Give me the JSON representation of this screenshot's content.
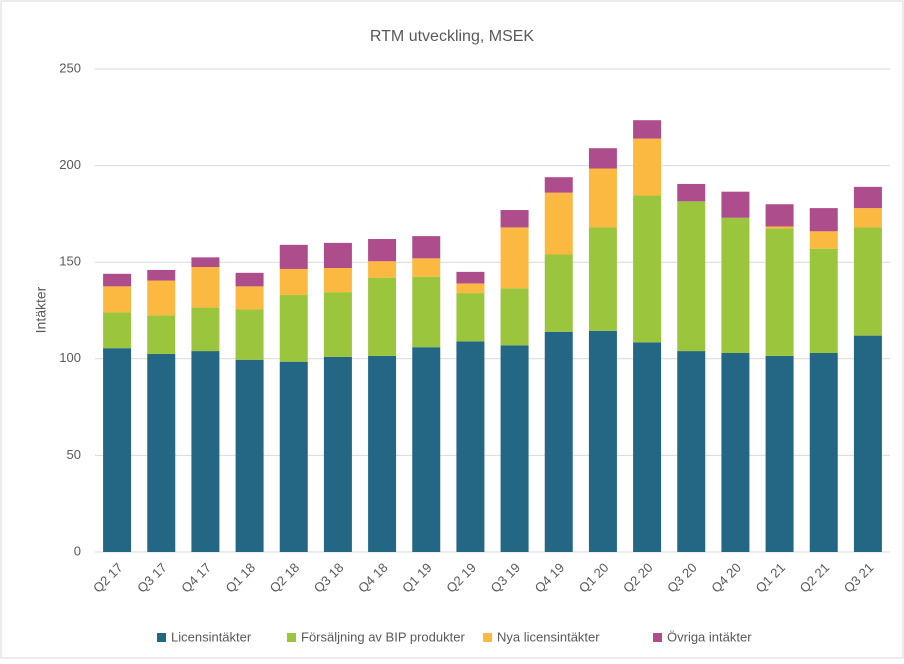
{
  "chart_data": {
    "type": "stacked_bar",
    "title": "RTM utveckling, MSEK",
    "y_label": "Intäkter",
    "categories": [
      "Q2 17",
      "Q3 17",
      "Q4 17",
      "Q1 18",
      "Q2 18",
      "Q3 18",
      "Q4 18",
      "Q1 19",
      "Q2 19",
      "Q3 19",
      "Q4 19",
      "Q1 20",
      "Q2 20",
      "Q3 20",
      "Q4 20",
      "Q1 21",
      "Q2 21",
      "Q3 21"
    ],
    "series": [
      {
        "name": "Licensintäkter",
        "color": "#236785",
        "values": [
          105.5,
          102.5,
          104,
          99.5,
          98.5,
          101,
          101.5,
          106,
          109,
          107,
          114,
          114.5,
          108.5,
          104,
          103,
          101.5,
          103,
          112
        ]
      },
      {
        "name": "Försäljning av BIP produkter",
        "color": "#9bc53d",
        "values": [
          18.5,
          20,
          22.5,
          26,
          34.5,
          33.5,
          40.5,
          36.5,
          25,
          29.5,
          40,
          53.5,
          76,
          77.5,
          70,
          66,
          54,
          56
        ]
      },
      {
        "name": "Nya licensintäkter",
        "color": "#fbb941",
        "values": [
          13.5,
          18,
          21,
          12,
          13.5,
          12.5,
          8.5,
          9.5,
          5,
          31.5,
          32,
          30.5,
          29.5,
          0,
          0,
          1,
          9,
          10
        ]
      },
      {
        "name": "Övriga intäkter",
        "color": "#ad4d8c",
        "values": [
          6.5,
          5.5,
          5,
          7,
          12.5,
          13,
          11.5,
          11.5,
          6,
          9,
          8,
          10.5,
          9.5,
          9,
          13.5,
          11.5,
          12,
          11
        ]
      }
    ],
    "ylim": [
      0,
      250
    ],
    "yticks": [
      0,
      50,
      100,
      150,
      200,
      250
    ],
    "grid": true,
    "legend": "bottom"
  }
}
